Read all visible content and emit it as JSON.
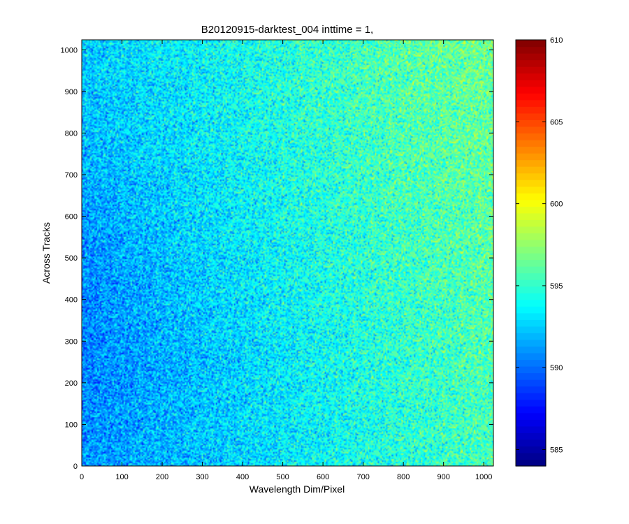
{
  "chart_data": {
    "type": "heatmap",
    "title": "B20120915-darktest_004 inttime = 1,",
    "xlabel": "Wavelength Dim/Pixel",
    "ylabel": "Across Tracks",
    "xlim": [
      0,
      1024
    ],
    "ylim": [
      0,
      1024
    ],
    "xticks": [
      0,
      100,
      200,
      300,
      400,
      500,
      600,
      700,
      800,
      900,
      1000
    ],
    "yticks": [
      0,
      100,
      200,
      300,
      400,
      500,
      600,
      700,
      800,
      900,
      1000
    ],
    "colormap": "jet",
    "clim": [
      584,
      610
    ],
    "colorbar_ticks": [
      585,
      590,
      595,
      600,
      605
    ],
    "colorbar_top_label": 610,
    "field_samples": {
      "description_grid": "value at (x,y) sampled on coarse grid, rows bottom→top",
      "x": [
        0,
        256,
        512,
        768,
        1024
      ],
      "y": [
        0,
        256,
        512,
        768,
        1024
      ],
      "z": [
        [
          591.0,
          592.2,
          593.4,
          594.6,
          595.6
        ],
        [
          590.6,
          592.0,
          593.5,
          594.8,
          595.8
        ],
        [
          590.9,
          592.6,
          594.0,
          595.2,
          596.1
        ],
        [
          592.0,
          593.2,
          594.5,
          595.6,
          596.4
        ],
        [
          592.6,
          593.6,
          594.8,
          595.9,
          596.6
        ]
      ],
      "noise_sd": 1.6
    }
  }
}
